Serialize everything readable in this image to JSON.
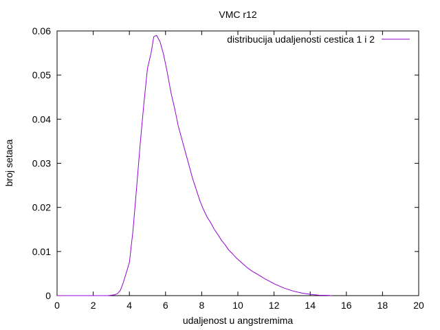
{
  "chart_data": {
    "type": "line",
    "title": "VMC r12",
    "xlabel": "udaljenost u angstremima",
    "ylabel": "broj setaca",
    "xlim": [
      0,
      20
    ],
    "ylim": [
      0,
      0.06
    ],
    "x_ticks": [
      0,
      2,
      4,
      6,
      8,
      10,
      12,
      14,
      16,
      18,
      20
    ],
    "y_ticks": [
      0,
      0.01,
      0.02,
      0.03,
      0.04,
      0.05,
      0.06
    ],
    "x_tick_labels": [
      "0",
      "2",
      "4",
      "6",
      "8",
      "10",
      "12",
      "14",
      "16",
      "18",
      "20"
    ],
    "y_tick_labels": [
      "0",
      "0.01",
      "0.02",
      "0.03",
      "0.04",
      "0.05",
      "0.06"
    ],
    "grid": false,
    "legend_position": "top-right",
    "series": [
      {
        "name": "distribucija udaljenosti cestica 1 i 2",
        "color": "#9400d3",
        "x": [
          0,
          2.8,
          3.0,
          3.2,
          3.35,
          3.5,
          3.65,
          3.8,
          4.0,
          4.2,
          4.4,
          4.6,
          4.8,
          5.0,
          5.2,
          5.35,
          5.5,
          5.7,
          5.9,
          6.1,
          6.3,
          6.5,
          6.7,
          6.9,
          7.1,
          7.3,
          7.5,
          7.7,
          7.9,
          8.1,
          8.3,
          8.5,
          8.7,
          8.9,
          9.1,
          9.3,
          9.5,
          9.7,
          9.9,
          10.2,
          10.5,
          10.8,
          11.1,
          11.5,
          12.0,
          12.5,
          13.0,
          13.5,
          14.0,
          14.5,
          15.0,
          15.2
        ],
        "y": [
          0,
          0,
          0.0001,
          0.0002,
          0.0005,
          0.0012,
          0.0028,
          0.0048,
          0.0075,
          0.0148,
          0.0245,
          0.0345,
          0.0435,
          0.0515,
          0.055,
          0.0587,
          0.059,
          0.0575,
          0.0545,
          0.0505,
          0.046,
          0.0425,
          0.0385,
          0.0355,
          0.0325,
          0.0295,
          0.0265,
          0.024,
          0.0215,
          0.0195,
          0.0178,
          0.0165,
          0.015,
          0.0138,
          0.0125,
          0.0115,
          0.0103,
          0.0095,
          0.0086,
          0.0075,
          0.0064,
          0.0055,
          0.0048,
          0.0038,
          0.0027,
          0.0018,
          0.0011,
          0.0006,
          0.0003,
          0.0001,
          5e-05,
          0
        ]
      }
    ]
  }
}
